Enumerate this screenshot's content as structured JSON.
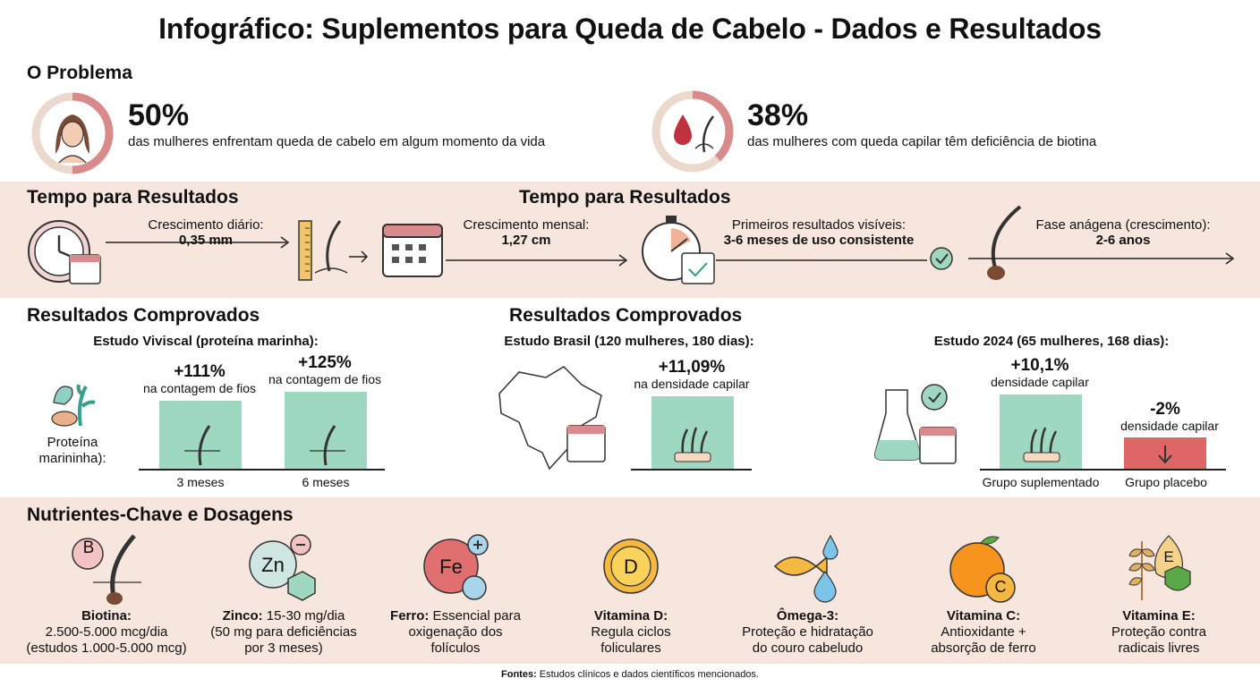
{
  "title": "Infográfico: Suplementos para Queda de Cabelo - Dados e Resultados",
  "problem": {
    "heading": "O Problema",
    "stat1": {
      "value": "50%",
      "text": "das mulheres enfrentam queda de cabelo em algum momento da vida",
      "fraction": 0.5
    },
    "stat2": {
      "value": "38%",
      "text": "das mulheres com queda capilar têm deficiência de biotina",
      "fraction": 0.38
    }
  },
  "timeline": {
    "heading_left": "Tempo para Resultados",
    "heading_right": "Tempo para Resultados",
    "daily_label": "Crescimento diário:",
    "daily_value": "0,35 mm",
    "monthly_label": "Crescimento mensal:",
    "monthly_value": "1,27 cm",
    "first_label": "Primeiros resultados visíveis:",
    "first_value": "3-6 meses de uso consistente",
    "anagen_label": "Fase anágena (crescimento):",
    "anagen_value": "2-6 anos"
  },
  "results": {
    "heading_left": "Resultados Comprovados",
    "heading_right": "Resultados Comprovados",
    "viviscal": {
      "title": "Estudo Viviscal (proteína marinha):",
      "icon_label_1": "Proteína",
      "icon_label_2": "marininha):",
      "bar1_value": "+111%",
      "bar1_sub": "na contagem de fios",
      "bar1_x": "3 meses",
      "bar2_value": "+125%",
      "bar2_sub": "na contagem de fios",
      "bar2_x": "6 meses"
    },
    "brasil": {
      "title": "Estudo Brasil (120 mulheres, 180 dias):",
      "bar_value": "+11,09%",
      "bar_sub": "na densidade capilar"
    },
    "study2024": {
      "title": "Estudo 2024 (65 mulheres, 168 dias):",
      "bar1_value": "+10,1%",
      "bar1_sub": "densidade capilar",
      "bar1_x": "Grupo suplementado",
      "bar2_value": "-2%",
      "bar2_sub": "densidade capilar",
      "bar2_x": "Grupo placebo"
    }
  },
  "nutrients": {
    "heading": "Nutrientes-Chave e Dosagens",
    "items": [
      {
        "name": "Biotina:",
        "line1": "",
        "line2": "2.500-5.000 mcg/dia",
        "line3": "(estudos 1.000-5.000 mcg)",
        "icon_text": "B"
      },
      {
        "name": "Zinco:",
        "line1": " 15-30 mg/dia",
        "line2": "(50 mg para deficiências",
        "line3": "por 3 meses)",
        "icon_text": "Zn"
      },
      {
        "name": "Ferro:",
        "line1": " Essencial para",
        "line2": "oxigenação dos",
        "line3": "folículos",
        "icon_text": "Fe"
      },
      {
        "name": "Vitamina D:",
        "line1": "",
        "line2": "Regula ciclos",
        "line3": "foliculares",
        "icon_text": "D"
      },
      {
        "name": "Ômega-3:",
        "line1": "",
        "line2": "Proteção e hidratação",
        "line3": "do couro cabeludo",
        "icon_text": ""
      },
      {
        "name": "Vitamina C:",
        "line1": "",
        "line2": "Antioxidante +",
        "line3": "absorção de ferro",
        "icon_text": "C"
      },
      {
        "name": "Vitamina E:",
        "line1": "",
        "line2": "Proteção contra",
        "line3": "radicais livres",
        "icon_text": "E"
      }
    ]
  },
  "footer": {
    "bold": "Fontes:",
    "text": " Estudos clínicos e dados científicos mencionados."
  },
  "colors": {
    "band": "#f6e6dd",
    "bar_green": "#9fd8c0",
    "bar_red": "#de6666",
    "ring": "#d98a8a",
    "ring_bg": "#ecd9cd"
  }
}
